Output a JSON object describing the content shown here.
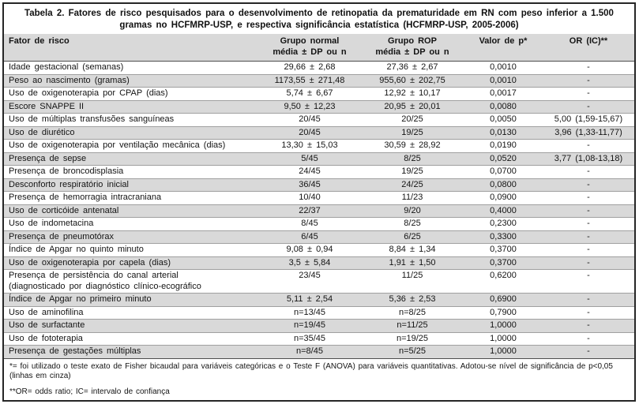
{
  "colors": {
    "stripe": "#d9d9d9",
    "header_bg": "#d9d9d9",
    "border": "#262626",
    "row_line": "#a0a0a0"
  },
  "table": {
    "title": "Tabela 2. Fatores de risco pesquisados para o desenvolvimento de retinopatia da prematuridade em RN com peso inferior a 1.500 gramas no HCFMRP-USP, e respectiva significância estatística (HCFMRP-USP, 2005-2006)",
    "columns": [
      {
        "id": "fator-de-risco",
        "line1": "Fator de risco",
        "line2": ""
      },
      {
        "id": "grupo-normal",
        "line1": "Grupo normal",
        "line2": "média ± DP ou n"
      },
      {
        "id": "grupo-rop",
        "line1": "Grupo ROP",
        "line2": "média ± DP ou n"
      },
      {
        "id": "valor-de-p",
        "line1": "Valor de p*",
        "line2": ""
      },
      {
        "id": "or-ic",
        "line1": "OR (IC)**",
        "line2": ""
      }
    ],
    "rows": [
      {
        "factor": "Idade gestacional (semanas)",
        "normal": "29,66 ± 2,68",
        "rop": "27,36 ± 2,67",
        "p": "0,0010",
        "or": "-",
        "shaded": false
      },
      {
        "factor": "Peso ao nascimento (gramas)",
        "normal": "1173,55 ± 271,48",
        "rop": "955,60 ± 202,75",
        "p": "0,0010",
        "or": "-",
        "shaded": true
      },
      {
        "factor": "Uso de oxigenoterapia por CPAP (dias)",
        "normal": "5,74 ± 6,67",
        "rop": "12,92 ± 10,17",
        "p": "0,0017",
        "or": "-",
        "shaded": false
      },
      {
        "factor": "Escore SNAPPE II",
        "normal": "9,50 ± 12,23",
        "rop": "20,95 ± 20,01",
        "p": "0,0080",
        "or": "-",
        "shaded": true
      },
      {
        "factor": "Uso de múltiplas transfusões sanguíneas",
        "normal": "20/45",
        "rop": "20/25",
        "p": "0,0050",
        "or": "5,00 (1,59-15,67)",
        "shaded": false
      },
      {
        "factor": "Uso de diurético",
        "normal": "20/45",
        "rop": "19/25",
        "p": "0,0130",
        "or": "3,96 (1,33-11,77)",
        "shaded": true
      },
      {
        "factor": "Uso de oxigenoterapia por ventilação mecânica (dias)",
        "normal": "13,30 ± 15,03",
        "rop": "30,59 ± 28,92",
        "p": "0,0190",
        "or": "-",
        "shaded": false
      },
      {
        "factor": "Presença de sepse",
        "normal": "5/45",
        "rop": "8/25",
        "p": "0,0520",
        "or": "3,77 (1,08-13,18)",
        "shaded": true
      },
      {
        "factor": "Presença de broncodisplasia",
        "normal": "24/45",
        "rop": "19/25",
        "p": "0,0700",
        "or": "-",
        "shaded": false
      },
      {
        "factor": "Desconforto respiratório inicial",
        "normal": "36/45",
        "rop": "24/25",
        "p": "0,0800",
        "or": "-",
        "shaded": true
      },
      {
        "factor": "Presença de hemorragia intracraniana",
        "normal": "10/40",
        "rop": "11/23",
        "p": "0,0900",
        "or": "-",
        "shaded": false
      },
      {
        "factor": "Uso de corticóide antenatal",
        "normal": "22/37",
        "rop": "9/20",
        "p": "0,4000",
        "or": "-",
        "shaded": true
      },
      {
        "factor": "Uso de indometacina",
        "normal": "8/45",
        "rop": "8/25",
        "p": "0,2300",
        "or": "-",
        "shaded": false
      },
      {
        "factor": "Presença de pneumotórax",
        "normal": "6/45",
        "rop": "6/25",
        "p": "0,3300",
        "or": "-",
        "shaded": true
      },
      {
        "factor": "Índice de Apgar no quinto minuto",
        "normal": "9,08 ± 0,94",
        "rop": "8,84 ± 1,34",
        "p": "0,3700",
        "or": "-",
        "shaded": false
      },
      {
        "factor": "Uso de oxigenoterapia por capela (dias)",
        "normal": "3,5 ± 5,84",
        "rop": "1,91 ± 1,50",
        "p": "0,3700",
        "or": "-",
        "shaded": true
      },
      {
        "factor": "Presença de persistência do canal arterial",
        "factor2": "(diagnosticado por diagnóstico clínico-ecográfico",
        "normal": "23/45",
        "rop": "11/25",
        "p": "0,6200",
        "or": "-",
        "shaded": false
      },
      {
        "factor": "Índice de Apgar no primeiro minuto",
        "normal": "5,11 ± 2,54",
        "rop": "5,36 ± 2,53",
        "p": "0,6900",
        "or": "-",
        "shaded": true
      },
      {
        "factor": "Uso de aminofilina",
        "normal": "n=13/45",
        "rop": "n=8/25",
        "p": "0,7900",
        "or": "-",
        "shaded": false
      },
      {
        "factor": "Uso de surfactante",
        "normal": "n=19/45",
        "rop": "n=11/25",
        "p": "1,0000",
        "or": "-",
        "shaded": true
      },
      {
        "factor": "Uso de fototerapia",
        "normal": "n=35/45",
        "rop": "n=19/25",
        "p": "1,0000",
        "or": "-",
        "shaded": false
      },
      {
        "factor": "Presença de gestações múltiplas",
        "normal": "n=8/45",
        "rop": "n=5/25",
        "p": "1,0000",
        "or": "-",
        "shaded": true
      }
    ],
    "footnotes": [
      "*= foi utilizado o teste exato de Fisher bicaudal para variáveis categóricas e o Teste F (ANOVA) para variáveis quantitativas. Adotou-se nível de significância de p<0,05 (linhas em cinza)",
      "**OR= odds ratio; IC= intervalo de confiança"
    ]
  }
}
